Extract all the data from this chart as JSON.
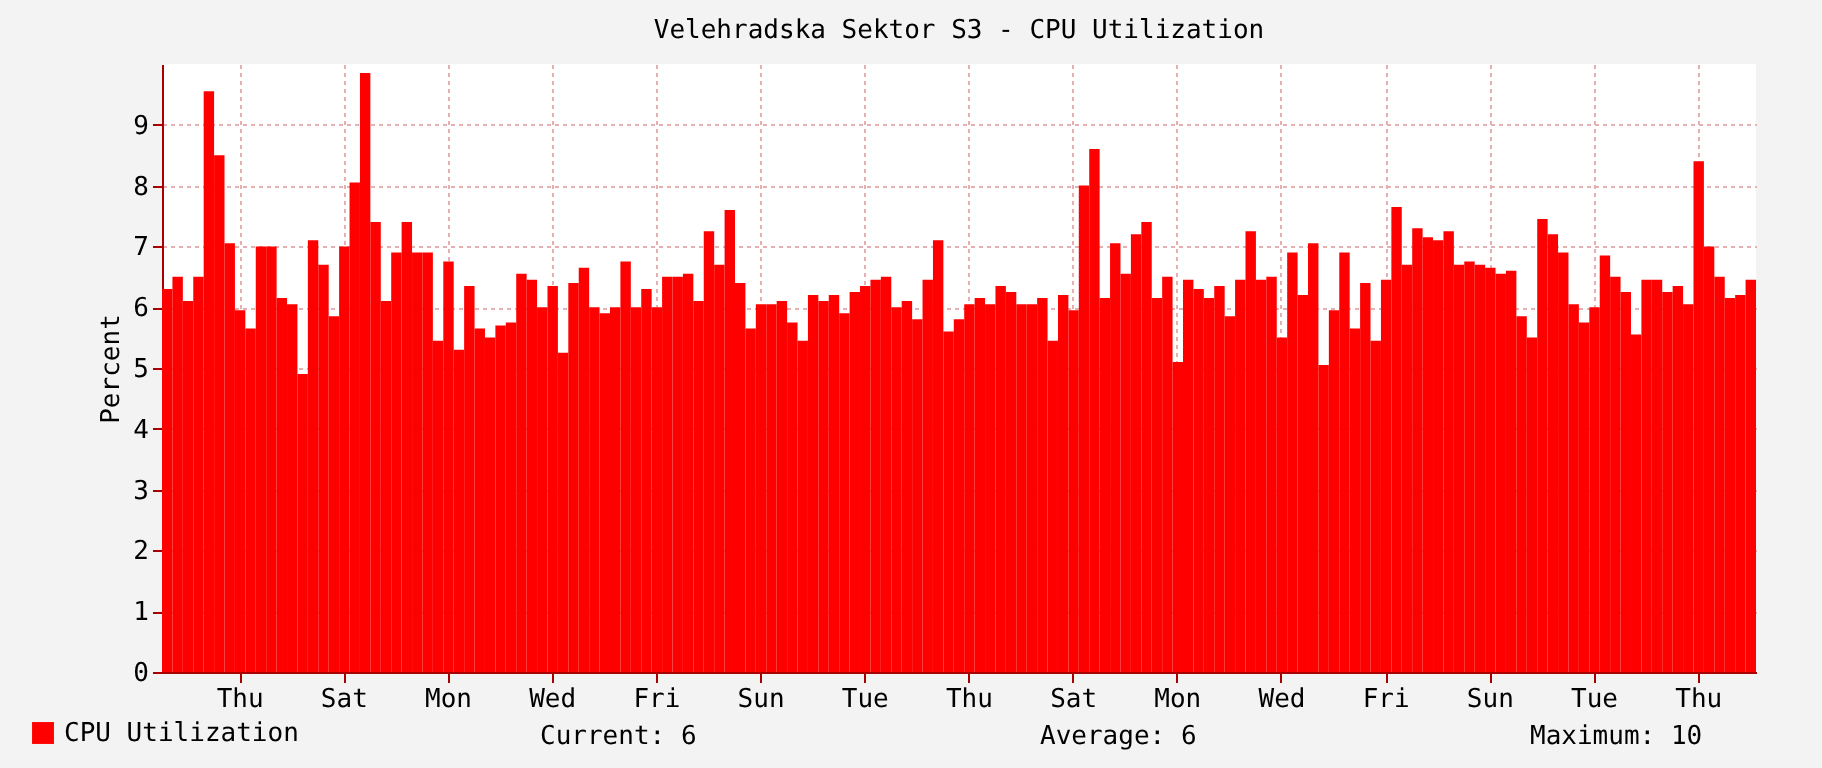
{
  "chart_data": {
    "type": "bar",
    "title": "Velehradska  Sektor S3 - CPU Utilization",
    "ylabel": "Percent",
    "categories": [
      null,
      null,
      null,
      null,
      null,
      null,
      null,
      "Thu",
      null,
      null,
      null,
      null,
      null,
      null,
      null,
      null,
      null,
      "Sat",
      null,
      null,
      null,
      null,
      null,
      null,
      null,
      null,
      null,
      "Mon",
      null,
      null,
      null,
      null,
      null,
      null,
      null,
      null,
      null,
      "Wed",
      null,
      null,
      null,
      null,
      null,
      null,
      null,
      null,
      null,
      "Fri",
      null,
      null,
      null,
      null,
      null,
      null,
      null,
      null,
      null,
      "Sun",
      null,
      null,
      null,
      null,
      null,
      null,
      null,
      null,
      null,
      "Tue",
      null,
      null,
      null,
      null,
      null,
      null,
      null,
      null,
      null,
      "Thu",
      null,
      null,
      null,
      null,
      null,
      null,
      null,
      null,
      null,
      "Sat",
      null,
      null,
      null,
      null,
      null,
      null,
      null,
      null,
      null,
      "Mon",
      null,
      null,
      null,
      null,
      null,
      null,
      null,
      null,
      null,
      "Wed",
      null,
      null,
      null,
      null,
      null,
      null,
      null,
      null,
      null,
      "Fri",
      null,
      null,
      null,
      null,
      null,
      null,
      null,
      null,
      null,
      "Sun",
      null,
      null,
      null,
      null,
      null,
      null,
      null,
      null,
      null,
      "Tue",
      null,
      null,
      null,
      null,
      null,
      null,
      null,
      null,
      null,
      "Thu",
      null,
      null,
      null,
      null,
      null
    ],
    "series": [
      {
        "name": "CPU Utilization",
        "color": "#ff0000",
        "values": [
          6.3,
          6.5,
          6.1,
          6.5,
          9.55,
          8.5,
          7.05,
          5.95,
          5.65,
          7.0,
          7.0,
          6.15,
          6.05,
          4.9,
          7.1,
          6.7,
          5.85,
          7.0,
          8.05,
          9.85,
          7.4,
          6.1,
          6.9,
          7.4,
          6.9,
          6.9,
          5.45,
          6.75,
          5.3,
          6.35,
          5.65,
          5.5,
          5.7,
          5.75,
          6.55,
          6.45,
          6.0,
          6.35,
          5.25,
          6.4,
          6.65,
          6.0,
          5.9,
          6.0,
          6.75,
          6.0,
          6.3,
          6.0,
          6.5,
          6.5,
          6.55,
          6.1,
          7.25,
          6.7,
          7.6,
          6.4,
          5.65,
          6.05,
          6.05,
          6.1,
          5.75,
          5.45,
          6.2,
          6.1,
          6.2,
          5.9,
          6.25,
          6.35,
          6.45,
          6.5,
          6.0,
          6.1,
          5.8,
          6.45,
          7.1,
          5.6,
          5.8,
          6.05,
          6.15,
          6.05,
          6.35,
          6.25,
          6.05,
          6.05,
          6.15,
          5.45,
          6.2,
          5.95,
          8.0,
          8.6,
          6.15,
          7.05,
          6.55,
          7.2,
          7.4,
          6.15,
          6.5,
          5.1,
          6.45,
          6.3,
          6.15,
          6.35,
          5.85,
          6.45,
          7.25,
          6.45,
          6.5,
          5.5,
          6.9,
          6.2,
          7.05,
          5.05,
          5.95,
          6.9,
          5.65,
          6.4,
          5.45,
          6.45,
          7.65,
          6.7,
          7.3,
          7.15,
          7.1,
          7.25,
          6.7,
          6.75,
          6.7,
          6.65,
          6.55,
          6.6,
          5.85,
          5.5,
          7.45,
          7.2,
          6.9,
          6.05,
          5.75,
          6.0,
          6.85,
          6.5,
          6.25,
          5.55,
          6.45,
          6.45,
          6.25,
          6.35,
          6.05,
          8.4,
          7.0,
          6.5,
          6.15,
          6.2,
          6.45
        ]
      }
    ],
    "ylim": [
      0,
      10
    ],
    "yticks": [
      0,
      1,
      2,
      3,
      4,
      5,
      6,
      7,
      8,
      9
    ],
    "grid": true,
    "legend": "bottom left",
    "annotations": [
      "Current: 6",
      "Average: 6",
      "Maximum: 10"
    ]
  }
}
